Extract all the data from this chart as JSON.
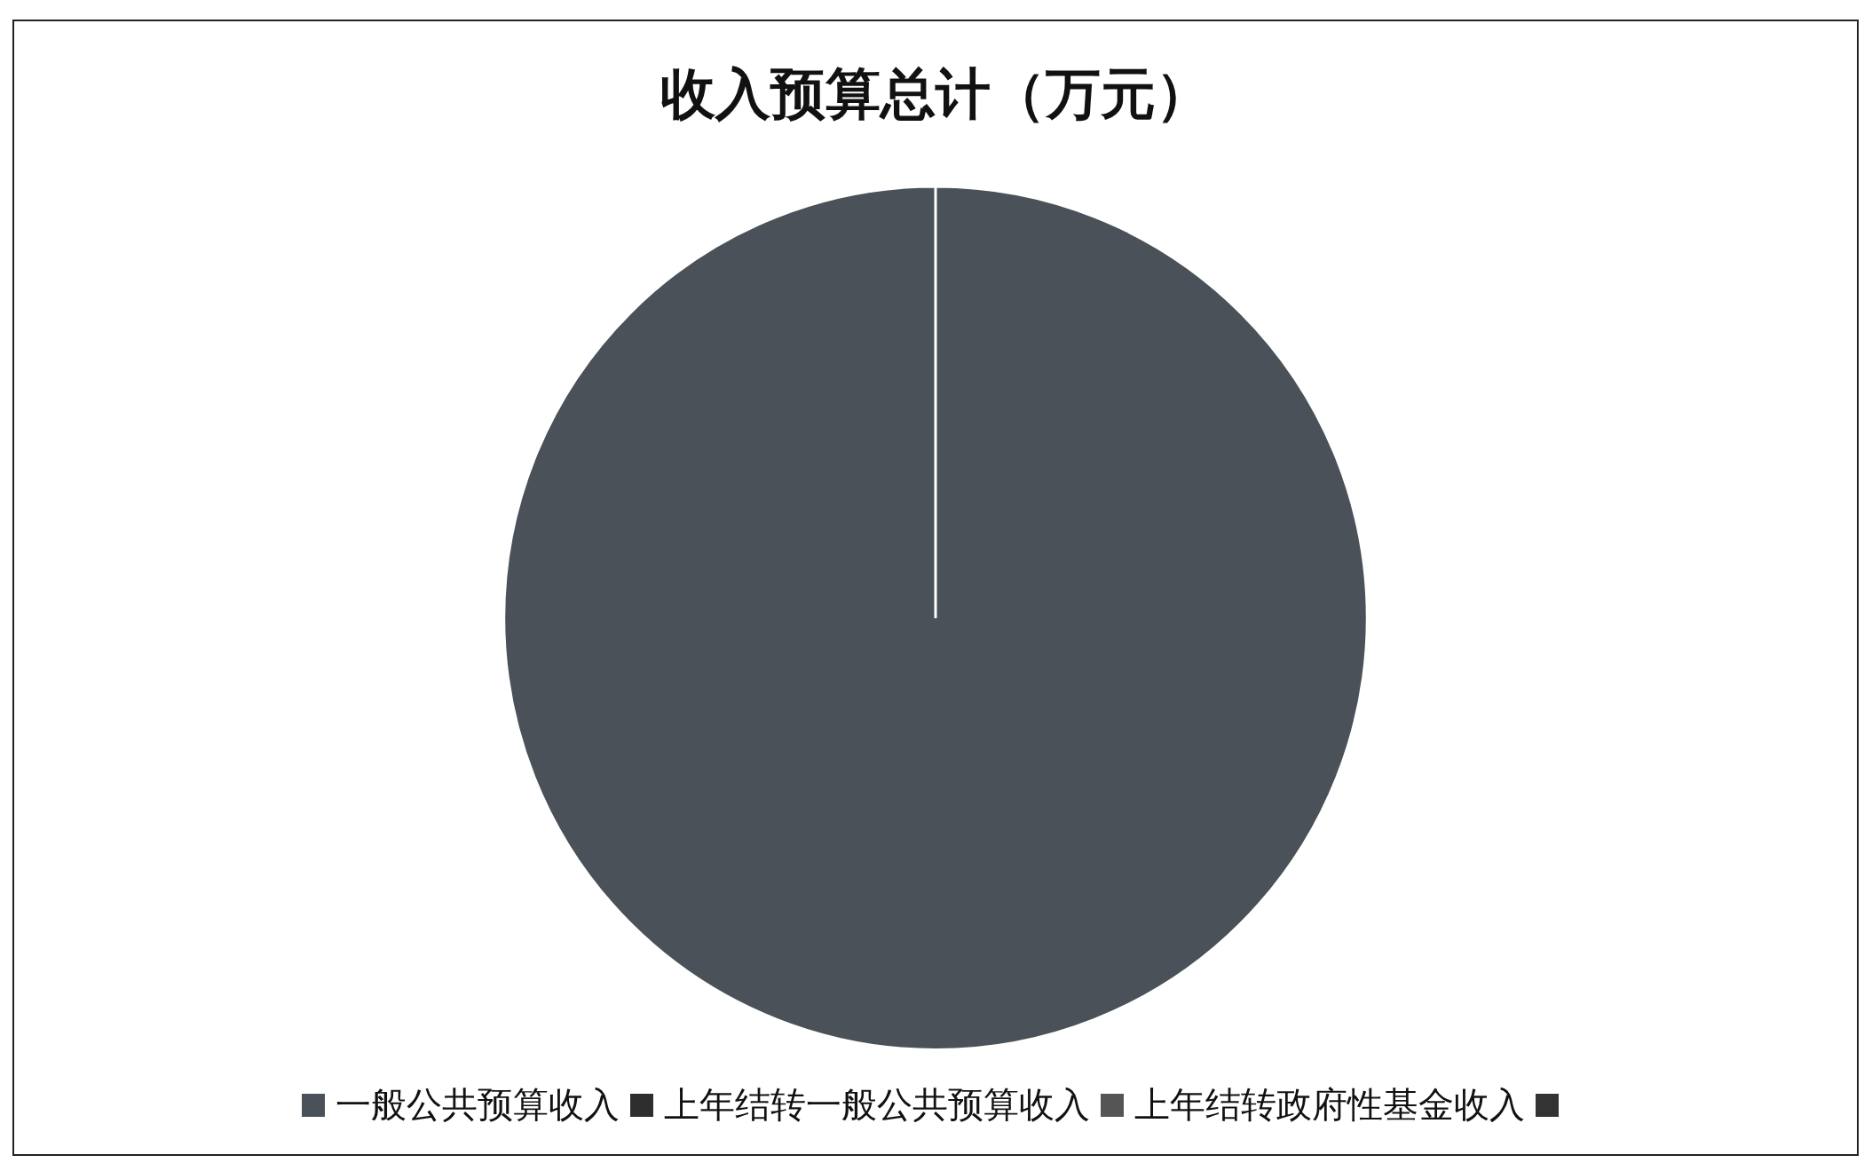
{
  "chart_data": {
    "type": "pie",
    "title": "收入预算总计（万元）",
    "categories": [
      "一般公共预算收入",
      "上年结转一般公共预算收入",
      "上年结转政府性基金收入",
      null
    ],
    "values": [
      100,
      0,
      0,
      0
    ],
    "colors": [
      "#4b5158",
      "#2e2e2e",
      "#555555",
      "#333333"
    ],
    "legend": "bottom"
  }
}
